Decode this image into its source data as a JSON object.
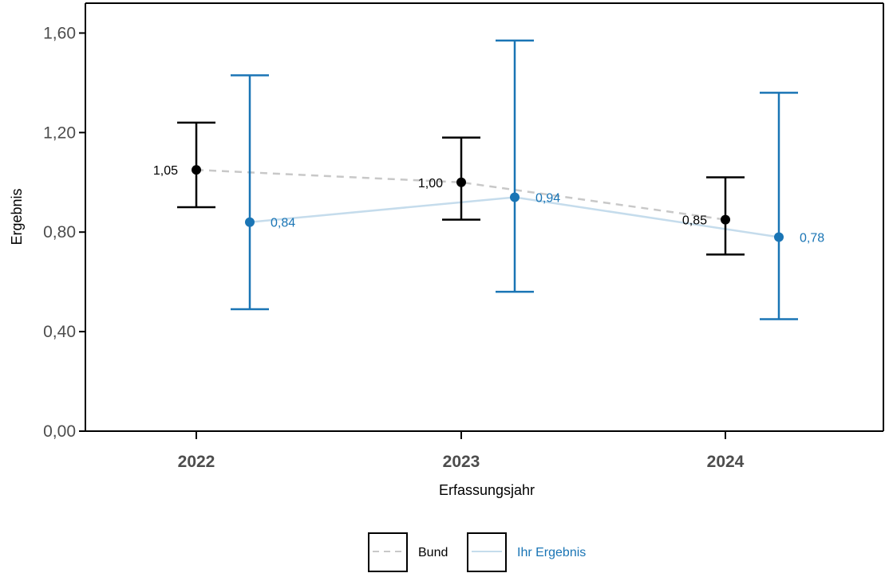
{
  "chart_data": {
    "type": "line",
    "xlabel": "Erfassungsjahr",
    "ylabel": "Ergebnis",
    "categories": [
      "2022",
      "2023",
      "2024"
    ],
    "ylim": [
      0,
      1.72
    ],
    "yticks": [
      {
        "value": 0.0,
        "label": "0,00"
      },
      {
        "value": 0.4,
        "label": "0,40"
      },
      {
        "value": 0.8,
        "label": "0,80"
      },
      {
        "value": 1.2,
        "label": "1,20"
      },
      {
        "value": 1.6,
        "label": "1,60"
      }
    ],
    "series": [
      {
        "name": "Bund",
        "color": "#000000",
        "line_color": "#c8c8c8",
        "line_style": "dashed",
        "values": [
          1.05,
          1.0,
          0.85
        ],
        "labels": [
          "1,05",
          "1,00",
          "0,85"
        ],
        "ci_lower": [
          0.9,
          0.85,
          0.71
        ],
        "ci_upper": [
          1.24,
          1.18,
          1.02
        ]
      },
      {
        "name": "Ihr Ergebnis",
        "color": "#1a75b5",
        "line_color": "#c5dcec",
        "line_style": "solid",
        "values": [
          0.84,
          0.94,
          0.78
        ],
        "labels": [
          "0,84",
          "0,94",
          "0,78"
        ],
        "ci_lower": [
          0.49,
          0.56,
          0.45
        ],
        "ci_upper": [
          1.43,
          1.57,
          1.36
        ]
      }
    ],
    "legend_position": "bottom",
    "grid": false
  }
}
